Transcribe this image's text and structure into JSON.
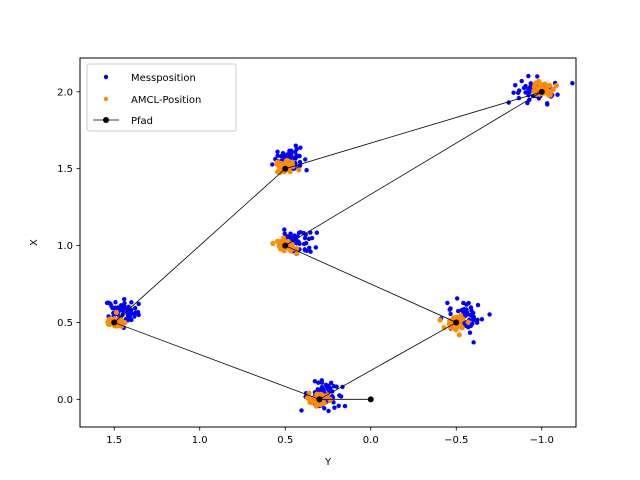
{
  "chart_data": {
    "type": "scatter",
    "xlabel": "Y",
    "ylabel": "X",
    "x_axis_inverted": true,
    "xlim": [
      1.7,
      -1.2
    ],
    "ylim": [
      -0.18,
      2.22
    ],
    "xticks": [
      1.5,
      1.0,
      0.5,
      0.0,
      -0.5,
      -1.0
    ],
    "xtick_labels": [
      "1.5",
      "1.0",
      "0.5",
      "0.0",
      "−0.5",
      "−1.0"
    ],
    "yticks": [
      0.0,
      0.5,
      1.0,
      1.5,
      2.0
    ],
    "ytick_labels": [
      "0.0",
      "0.5",
      "1.0",
      "1.5",
      "2.0"
    ],
    "grid": false,
    "legend": "top-left",
    "series": [
      {
        "name": "Messposition",
        "kind": "scatter",
        "color": "#0000ff",
        "clusters": [
          {
            "center_y": 1.46,
            "center_x": 0.57,
            "spread_y": 0.05,
            "spread_x": 0.04,
            "count": 55
          },
          {
            "center_y": 0.47,
            "center_x": 1.55,
            "spread_y": 0.05,
            "spread_x": 0.04,
            "count": 55
          },
          {
            "center_y": 0.43,
            "center_x": 1.03,
            "spread_y": 0.05,
            "spread_x": 0.05,
            "count": 55
          },
          {
            "center_y": -0.97,
            "center_x": 2.01,
            "spread_y": 0.06,
            "spread_x": 0.04,
            "count": 55
          },
          {
            "center_y": -0.55,
            "center_x": 0.54,
            "spread_y": 0.05,
            "spread_x": 0.05,
            "count": 55
          },
          {
            "center_y": 0.27,
            "center_x": 0.03,
            "spread_y": 0.06,
            "spread_x": 0.04,
            "count": 55
          }
        ]
      },
      {
        "name": "AMCL-Position",
        "kind": "scatter",
        "color": "#ff8c00",
        "clusters": [
          {
            "center_y": 1.5,
            "center_x": 0.5,
            "spread_y": 0.03,
            "spread_x": 0.02,
            "count": 45
          },
          {
            "center_y": 0.5,
            "center_x": 1.51,
            "spread_y": 0.03,
            "spread_x": 0.02,
            "count": 45
          },
          {
            "center_y": 0.5,
            "center_x": 1.0,
            "spread_y": 0.03,
            "spread_x": 0.02,
            "count": 45
          },
          {
            "center_y": -1.0,
            "center_x": 2.02,
            "spread_y": 0.03,
            "spread_x": 0.02,
            "count": 45
          },
          {
            "center_y": -0.5,
            "center_x": 0.5,
            "spread_y": 0.03,
            "spread_x": 0.02,
            "count": 45
          },
          {
            "center_y": 0.3,
            "center_x": 0.0,
            "spread_y": 0.03,
            "spread_x": 0.02,
            "count": 45
          }
        ]
      },
      {
        "name": "Pfad",
        "kind": "line",
        "color": "#000000",
        "marker": "circle",
        "points": [
          {
            "y": 0.0,
            "x": 0.0
          },
          {
            "y": 0.3,
            "x": 0.0
          },
          {
            "y": 1.5,
            "x": 0.5
          },
          {
            "y": 0.5,
            "x": 1.5
          },
          {
            "y": -1.0,
            "x": 2.0
          },
          {
            "y": 0.5,
            "x": 1.0
          },
          {
            "y": -0.5,
            "x": 0.5
          },
          {
            "y": 0.3,
            "x": 0.0
          }
        ]
      }
    ]
  }
}
